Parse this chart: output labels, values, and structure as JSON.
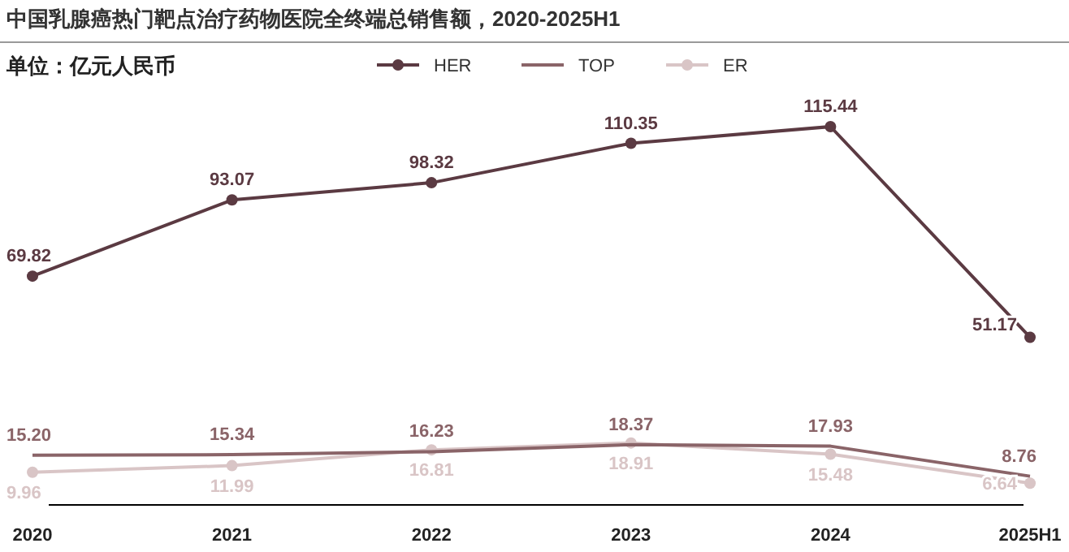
{
  "chart_data": {
    "type": "line",
    "title": "中国乳腺癌热门靶点治疗药物医院全终端总销售额，2020-2025H1",
    "subtitle": "单位：亿元人民币",
    "categories": [
      "2020",
      "2021",
      "2022",
      "2023",
      "2024",
      "2025H1"
    ],
    "series": [
      {
        "name": "HER",
        "color": "#5b3a42",
        "marker": "circle",
        "values": [
          69.82,
          93.07,
          98.32,
          110.35,
          115.44,
          51.17
        ],
        "value_labels": [
          "69.82",
          "93.07",
          "98.32",
          "110.35",
          "115.44",
          "51.17"
        ]
      },
      {
        "name": "TOP",
        "color": "#8a6468",
        "marker": "none",
        "values": [
          15.2,
          15.34,
          16.23,
          18.37,
          17.93,
          8.76
        ],
        "value_labels": [
          "15.20",
          "15.34",
          "16.23",
          "18.37",
          "17.93",
          "8.76"
        ]
      },
      {
        "name": "ER",
        "color": "#d9c5c6",
        "marker": "circle",
        "values": [
          9.96,
          11.99,
          16.81,
          18.91,
          15.48,
          6.64
        ],
        "value_labels": [
          "9.96",
          "11.99",
          "16.81",
          "18.91",
          "15.48",
          "6.64"
        ]
      }
    ],
    "legend": "top",
    "grid": false
  }
}
